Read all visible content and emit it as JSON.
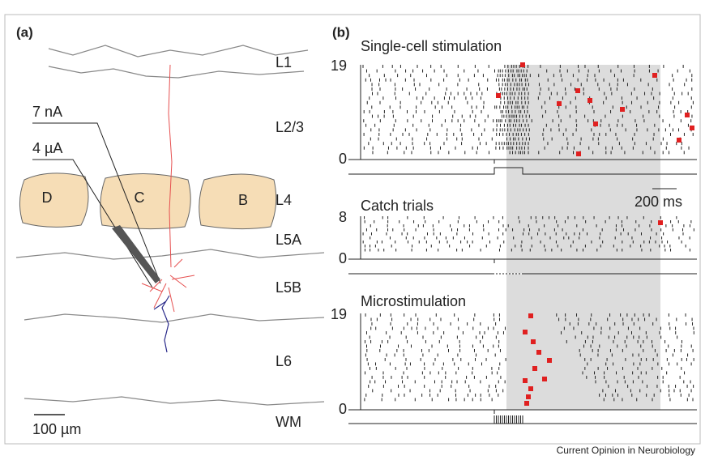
{
  "panel_a": {
    "label": "(a)",
    "layers": [
      "L1",
      "L2/3",
      "L4",
      "L5A",
      "L5B",
      "L6",
      "WM"
    ],
    "barrels": [
      "D",
      "C",
      "B"
    ],
    "electrodes": [
      "7 nA",
      "4 µA"
    ],
    "scale_bar": "100 µm"
  },
  "panel_b": {
    "label": "(b)",
    "rasters": [
      {
        "title": "Single-cell stimulation",
        "y_top": 19,
        "y_bottom": 0
      },
      {
        "title": "Catch trials",
        "y_top": 8,
        "y_bottom": 0
      },
      {
        "title": "Microstimulation",
        "y_top": 19,
        "y_bottom": 0
      }
    ],
    "scale_bar": "200 ms"
  },
  "footer": "Current Opinion in Neurobiology"
}
